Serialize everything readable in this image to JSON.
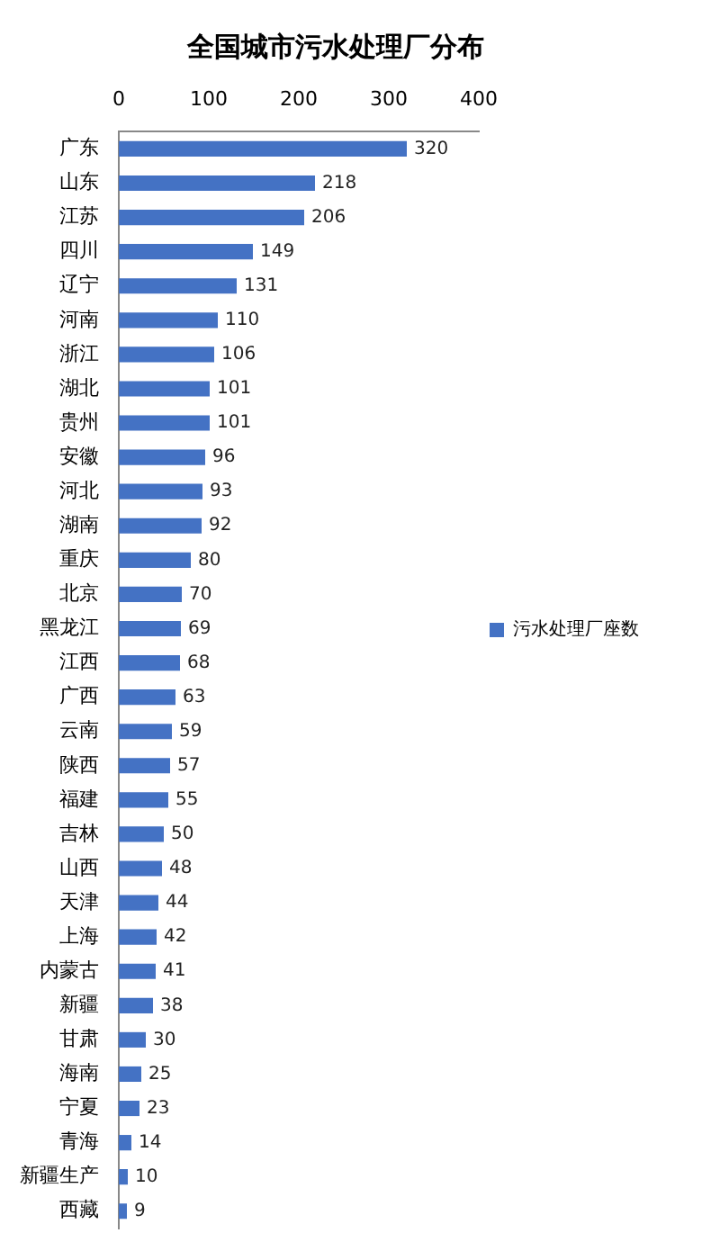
{
  "chart_data": {
    "type": "bar",
    "orientation": "horizontal",
    "title": "全国城市污水处理厂分布",
    "categories": [
      "广东",
      "山东",
      "江苏",
      "四川",
      "辽宁",
      "河南",
      "浙江",
      "湖北",
      "贵州",
      "安徽",
      "河北",
      "湖南",
      "重庆",
      "北京",
      "黑龙江",
      "江西",
      "广西",
      "云南",
      "陕西",
      "福建",
      "吉林",
      "山西",
      "天津",
      "上海",
      "内蒙古",
      "新疆",
      "甘肃",
      "海南",
      "宁夏",
      "青海",
      "新疆生产",
      "西藏"
    ],
    "series": [
      {
        "name": "污水处理厂座数",
        "color": "#4472c4",
        "values": [
          320,
          218,
          206,
          149,
          131,
          110,
          106,
          101,
          101,
          96,
          93,
          92,
          80,
          70,
          69,
          68,
          63,
          59,
          57,
          55,
          50,
          48,
          44,
          42,
          41,
          38,
          30,
          25,
          23,
          14,
          10,
          9
        ]
      }
    ],
    "xlim": [
      0,
      400
    ],
    "xticks": [
      0,
      100,
      200,
      300,
      400
    ],
    "grid": false,
    "legend": "right",
    "data_labels": true
  }
}
